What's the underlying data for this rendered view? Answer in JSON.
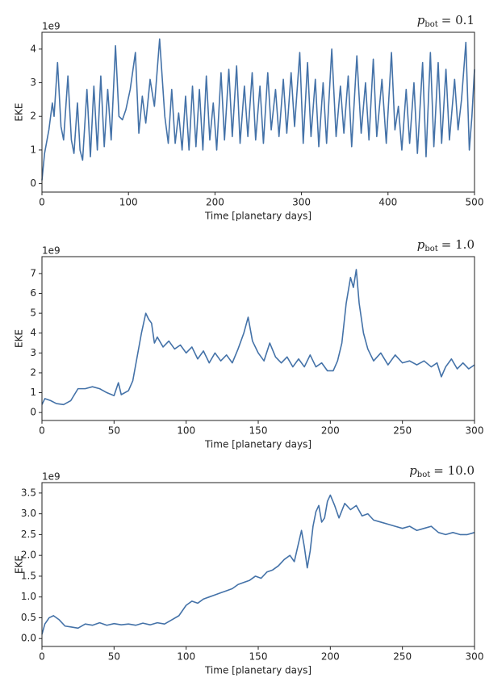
{
  "chart_data": [
    {
      "type": "line",
      "title_symbol": "p",
      "title_subscript": "bot",
      "title_value": "= 0.1",
      "offset_label": "1e9",
      "ylabel": "EKE",
      "xlabel": "Time [planetary days]",
      "color": "#4472a8",
      "xlim": [
        0,
        500
      ],
      "xticks": [
        0,
        100,
        200,
        300,
        400,
        500
      ],
      "ylim": [
        -0.25,
        4.5
      ],
      "yticks": [
        0,
        1,
        2,
        3,
        4
      ],
      "x": [
        0,
        3,
        8,
        12,
        14,
        18,
        22,
        25,
        30,
        34,
        37,
        41,
        44,
        47,
        52,
        56,
        60,
        64,
        68,
        72,
        76,
        80,
        85,
        89,
        93,
        97,
        102,
        108,
        112,
        116,
        120,
        125,
        130,
        136,
        142,
        146,
        150,
        154,
        158,
        162,
        166,
        170,
        174,
        178,
        182,
        186,
        190,
        194,
        198,
        202,
        207,
        211,
        216,
        220,
        225,
        229,
        234,
        238,
        243,
        247,
        252,
        256,
        261,
        265,
        270,
        274,
        279,
        283,
        288,
        292,
        298,
        302,
        307,
        311,
        316,
        320,
        325,
        329,
        335,
        340,
        345,
        349,
        354,
        358,
        364,
        369,
        374,
        378,
        383,
        387,
        393,
        398,
        404,
        408,
        412,
        416,
        421,
        425,
        430,
        434,
        440,
        444,
        449,
        453,
        458,
        462,
        467,
        471,
        477,
        481,
        485,
        490,
        494,
        497,
        500
      ],
      "values": [
        0.1,
        0.9,
        1.6,
        2.4,
        2.0,
        3.6,
        1.7,
        1.3,
        3.2,
        1.3,
        0.9,
        2.4,
        1.0,
        0.7,
        2.8,
        0.8,
        2.9,
        1.0,
        3.2,
        1.1,
        2.8,
        1.3,
        4.1,
        2.0,
        1.9,
        2.2,
        2.8,
        3.9,
        1.5,
        2.6,
        1.8,
        3.1,
        2.3,
        4.3,
        2.0,
        1.2,
        2.8,
        1.2,
        2.1,
        1.0,
        2.6,
        1.0,
        2.9,
        1.1,
        2.8,
        1.0,
        3.2,
        1.3,
        2.4,
        1.0,
        3.3,
        1.3,
        3.4,
        1.4,
        3.5,
        1.2,
        2.9,
        1.4,
        3.3,
        1.3,
        2.9,
        1.2,
        3.3,
        1.6,
        2.8,
        1.4,
        3.1,
        1.5,
        3.3,
        1.7,
        3.9,
        1.2,
        3.6,
        1.4,
        3.1,
        1.1,
        3.0,
        1.2,
        4.0,
        1.4,
        2.9,
        1.5,
        3.2,
        1.1,
        3.8,
        1.5,
        3.0,
        1.3,
        3.7,
        1.4,
        3.1,
        1.2,
        3.9,
        1.6,
        2.3,
        1.0,
        2.8,
        1.2,
        3.0,
        0.9,
        3.6,
        0.8,
        3.9,
        1.1,
        3.6,
        1.2,
        3.4,
        1.3,
        3.1,
        1.6,
        2.5,
        4.2,
        1.0,
        2.0,
        3.4
      ]
    },
    {
      "type": "line",
      "title_symbol": "p",
      "title_subscript": "bot",
      "title_value": "= 1.0",
      "offset_label": "1e9",
      "ylabel": "EKE",
      "xlabel": "Time [planetary days]",
      "color": "#4472a8",
      "xlim": [
        0,
        300
      ],
      "xticks": [
        0,
        50,
        100,
        150,
        200,
        250,
        300
      ],
      "ylim": [
        -0.4,
        7.85
      ],
      "yticks": [
        0,
        1,
        2,
        3,
        4,
        5,
        6,
        7
      ],
      "x": [
        0,
        2,
        6,
        10,
        15,
        20,
        25,
        30,
        35,
        40,
        45,
        50,
        53,
        55,
        60,
        63,
        66,
        69,
        72,
        74,
        76,
        78,
        80,
        84,
        88,
        92,
        96,
        100,
        104,
        108,
        112,
        116,
        120,
        124,
        128,
        132,
        136,
        140,
        143,
        146,
        150,
        154,
        158,
        162,
        166,
        170,
        174,
        178,
        182,
        186,
        190,
        194,
        198,
        202,
        205,
        208,
        211,
        214,
        216,
        218,
        220,
        223,
        226,
        230,
        235,
        240,
        245,
        250,
        255,
        260,
        265,
        270,
        274,
        277,
        280,
        284,
        288,
        292,
        296,
        300
      ],
      "values": [
        0.4,
        0.7,
        0.6,
        0.45,
        0.4,
        0.6,
        1.2,
        1.2,
        1.3,
        1.2,
        1.0,
        0.85,
        1.5,
        0.9,
        1.1,
        1.6,
        2.8,
        4.0,
        5.0,
        4.7,
        4.5,
        3.5,
        3.8,
        3.3,
        3.6,
        3.2,
        3.4,
        3.0,
        3.3,
        2.7,
        3.1,
        2.5,
        3.0,
        2.6,
        2.9,
        2.5,
        3.2,
        4.0,
        4.8,
        3.6,
        3.0,
        2.6,
        3.5,
        2.8,
        2.5,
        2.8,
        2.3,
        2.7,
        2.3,
        2.9,
        2.3,
        2.5,
        2.1,
        2.1,
        2.6,
        3.5,
        5.5,
        6.8,
        6.3,
        7.2,
        5.5,
        4.0,
        3.2,
        2.6,
        3.0,
        2.4,
        2.9,
        2.5,
        2.6,
        2.4,
        2.6,
        2.3,
        2.5,
        1.8,
        2.3,
        2.7,
        2.2,
        2.5,
        2.2,
        2.4
      ]
    },
    {
      "type": "line",
      "title_symbol": "p",
      "title_subscript": "bot",
      "title_value": "= 10.0",
      "offset_label": "1e9",
      "ylabel": "EKE",
      "xlabel": "Time [planetary days]",
      "color": "#4472a8",
      "xlim": [
        0,
        300
      ],
      "xticks": [
        0,
        50,
        100,
        150,
        200,
        250,
        300
      ],
      "ylim": [
        -0.19,
        3.75
      ],
      "yticks": [
        {
          "value": 0,
          "label": "0.0"
        },
        0.5,
        {
          "value": 1,
          "label": "1.0"
        },
        1.5,
        {
          "value": 2,
          "label": "2.0"
        },
        2.5,
        {
          "value": 3,
          "label": "3.0"
        },
        3.5
      ],
      "x": [
        0,
        2,
        5,
        8,
        12,
        16,
        20,
        25,
        30,
        35,
        40,
        45,
        50,
        55,
        60,
        65,
        70,
        75,
        80,
        85,
        90,
        95,
        100,
        104,
        108,
        112,
        116,
        120,
        124,
        128,
        132,
        136,
        140,
        144,
        148,
        152,
        156,
        160,
        164,
        168,
        172,
        175,
        178,
        180,
        182,
        184,
        186,
        188,
        190,
        192,
        194,
        196,
        198,
        200,
        203,
        206,
        210,
        214,
        218,
        222,
        226,
        230,
        235,
        240,
        245,
        250,
        255,
        260,
        265,
        270,
        275,
        280,
        285,
        290,
        295,
        300
      ],
      "values": [
        0.1,
        0.35,
        0.5,
        0.55,
        0.45,
        0.3,
        0.28,
        0.25,
        0.35,
        0.32,
        0.38,
        0.32,
        0.36,
        0.33,
        0.35,
        0.32,
        0.37,
        0.33,
        0.38,
        0.35,
        0.45,
        0.55,
        0.8,
        0.9,
        0.85,
        0.95,
        1.0,
        1.05,
        1.1,
        1.15,
        1.2,
        1.3,
        1.35,
        1.4,
        1.5,
        1.45,
        1.6,
        1.65,
        1.75,
        1.9,
        2.0,
        1.85,
        2.3,
        2.6,
        2.2,
        1.7,
        2.1,
        2.7,
        3.05,
        3.2,
        2.8,
        2.9,
        3.3,
        3.45,
        3.2,
        2.9,
        3.25,
        3.1,
        3.2,
        2.95,
        3.0,
        2.85,
        2.8,
        2.75,
        2.7,
        2.65,
        2.7,
        2.6,
        2.65,
        2.7,
        2.55,
        2.5,
        2.55,
        2.5,
        2.5,
        2.55
      ]
    }
  ]
}
